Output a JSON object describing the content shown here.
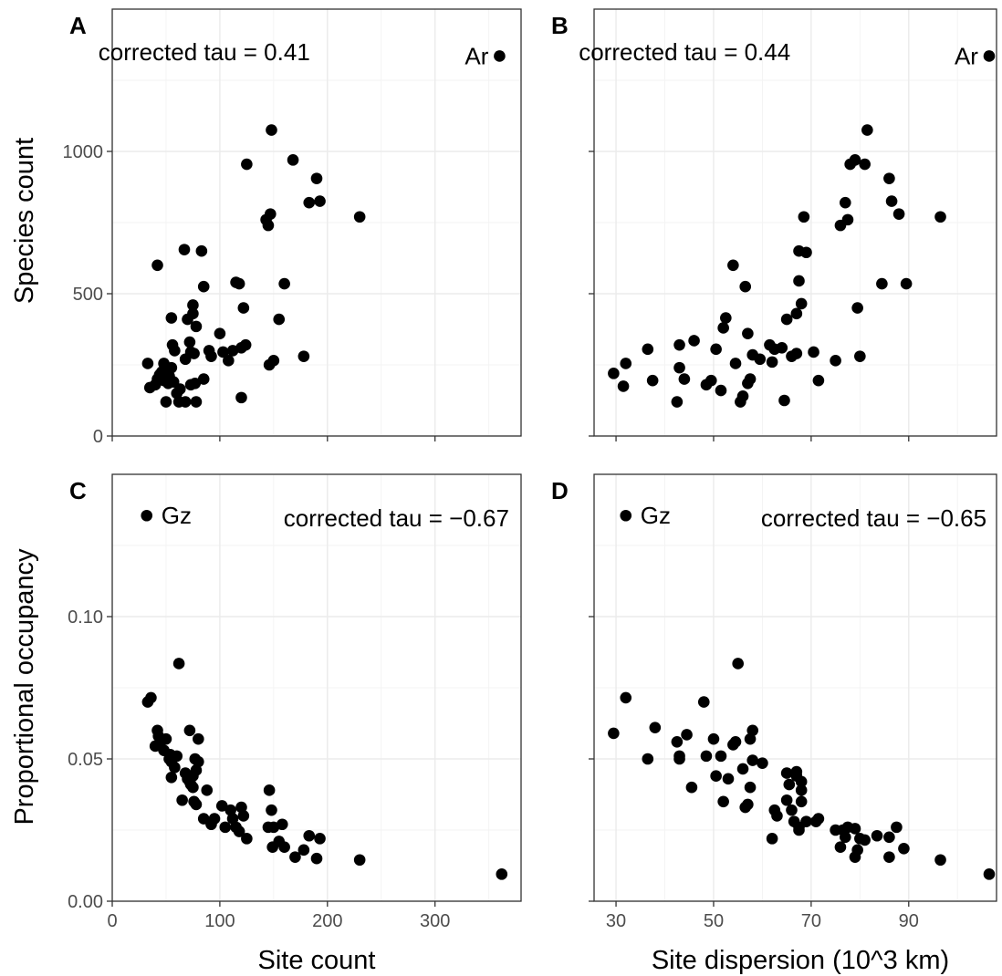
{
  "chart_data": [
    {
      "id": "A",
      "type": "scatter",
      "panel_label": "A",
      "annotation": "corrected tau = 0.41",
      "xlabel": "",
      "ylabel": "Species count",
      "xlim": [
        0,
        380
      ],
      "ylim": [
        0,
        1500
      ],
      "xticks": [
        0,
        100,
        200,
        300
      ],
      "xtick_labels": [
        "",
        "",
        "",
        ""
      ],
      "yticks": [
        0,
        500,
        1000
      ],
      "ytick_labels": [
        "0",
        "500",
        "1000"
      ],
      "grid": true,
      "highlight": {
        "label": "Ar",
        "x": 360,
        "y": 1335
      },
      "points": [
        [
          33,
          255
        ],
        [
          35,
          170
        ],
        [
          40,
          180
        ],
        [
          42,
          600
        ],
        [
          42,
          200
        ],
        [
          44,
          215
        ],
        [
          46,
          225
        ],
        [
          48,
          255
        ],
        [
          48,
          195
        ],
        [
          50,
          120
        ],
        [
          52,
          185
        ],
        [
          53,
          210
        ],
        [
          55,
          240
        ],
        [
          55,
          415
        ],
        [
          56,
          320
        ],
        [
          57,
          190
        ],
        [
          58,
          300
        ],
        [
          60,
          150
        ],
        [
          62,
          120
        ],
        [
          63,
          165
        ],
        [
          67,
          655
        ],
        [
          68,
          120
        ],
        [
          68,
          270
        ],
        [
          70,
          410
        ],
        [
          72,
          330
        ],
        [
          73,
          295
        ],
        [
          73,
          180
        ],
        [
          75,
          460
        ],
        [
          75,
          430
        ],
        [
          76,
          290
        ],
        [
          77,
          185
        ],
        [
          78,
          120
        ],
        [
          78,
          385
        ],
        [
          83,
          650
        ],
        [
          85,
          200
        ],
        [
          85,
          525
        ],
        [
          90,
          300
        ],
        [
          92,
          280
        ],
        [
          100,
          360
        ],
        [
          103,
          295
        ],
        [
          108,
          265
        ],
        [
          112,
          300
        ],
        [
          115,
          540
        ],
        [
          118,
          535
        ],
        [
          120,
          310
        ],
        [
          122,
          450
        ],
        [
          124,
          320
        ],
        [
          120,
          135
        ],
        [
          125,
          955
        ],
        [
          143,
          760
        ],
        [
          145,
          740
        ],
        [
          146,
          250
        ],
        [
          147,
          780
        ],
        [
          148,
          1075
        ],
        [
          150,
          265
        ],
        [
          155,
          410
        ],
        [
          160,
          535
        ],
        [
          168,
          970
        ],
        [
          178,
          280
        ],
        [
          183,
          820
        ],
        [
          190,
          905
        ],
        [
          193,
          825
        ],
        [
          230,
          770
        ]
      ]
    },
    {
      "id": "B",
      "type": "scatter",
      "panel_label": "B",
      "annotation": "corrected tau = 0.44",
      "xlabel": "",
      "ylabel": "",
      "xlim": [
        25.5,
        108
      ],
      "ylim": [
        0,
        1500
      ],
      "xticks": [
        30,
        50,
        70,
        90
      ],
      "xtick_labels": [
        "",
        "",
        "",
        ""
      ],
      "yticks": [
        0,
        500,
        1000
      ],
      "ytick_labels": [
        "",
        "",
        ""
      ],
      "grid": true,
      "highlight": {
        "label": "Ar",
        "x": 106.5,
        "y": 1335
      },
      "points": [
        [
          29.5,
          220
        ],
        [
          31.5,
          175
        ],
        [
          32,
          255
        ],
        [
          36.5,
          305
        ],
        [
          37.5,
          195
        ],
        [
          42.5,
          120
        ],
        [
          43,
          320
        ],
        [
          43,
          240
        ],
        [
          44,
          200
        ],
        [
          46,
          335
        ],
        [
          48.5,
          180
        ],
        [
          49.5,
          195
        ],
        [
          50.5,
          305
        ],
        [
          51.5,
          160
        ],
        [
          52,
          380
        ],
        [
          52.5,
          415
        ],
        [
          54,
          600
        ],
        [
          54.5,
          255
        ],
        [
          55.5,
          120
        ],
        [
          56,
          140
        ],
        [
          56.5,
          525
        ],
        [
          57,
          185
        ],
        [
          57,
          360
        ],
        [
          57.5,
          200
        ],
        [
          58,
          285
        ],
        [
          59.5,
          270
        ],
        [
          61.5,
          320
        ],
        [
          62,
          260
        ],
        [
          62.5,
          305
        ],
        [
          64,
          310
        ],
        [
          64.5,
          125
        ],
        [
          65,
          410
        ],
        [
          66,
          280
        ],
        [
          67,
          290
        ],
        [
          67,
          430
        ],
        [
          67.5,
          650
        ],
        [
          67.5,
          545
        ],
        [
          68,
          465
        ],
        [
          68.5,
          770
        ],
        [
          69,
          645
        ],
        [
          70.5,
          295
        ],
        [
          71.5,
          195
        ],
        [
          75,
          265
        ],
        [
          76,
          740
        ],
        [
          77,
          820
        ],
        [
          77.5,
          760
        ],
        [
          78,
          955
        ],
        [
          79,
          970
        ],
        [
          79.5,
          450
        ],
        [
          80,
          280
        ],
        [
          81,
          955
        ],
        [
          81.5,
          1075
        ],
        [
          84.5,
          535
        ],
        [
          86,
          905
        ],
        [
          86.5,
          825
        ],
        [
          88,
          780
        ],
        [
          89.5,
          535
        ],
        [
          96.5,
          770
        ]
      ]
    },
    {
      "id": "C",
      "type": "scatter",
      "panel_label": "C",
      "annotation": "corrected tau = −0.67",
      "xlabel": "Site count",
      "ylabel": "Proportional occupancy",
      "xlim": [
        0,
        380
      ],
      "ylim": [
        0,
        0.15
      ],
      "xticks": [
        0,
        100,
        200,
        300
      ],
      "xtick_labels": [
        "0",
        "100",
        "200",
        "300"
      ],
      "yticks": [
        0,
        0.05,
        0.1
      ],
      "ytick_labels": [
        "0.00",
        "0.05",
        "0.10"
      ],
      "grid": true,
      "highlight": {
        "label": "Gz",
        "x": 32,
        "y": 0.1355
      },
      "points": [
        [
          33,
          0.07
        ],
        [
          36,
          0.0715
        ],
        [
          40,
          0.0545
        ],
        [
          42,
          0.06
        ],
        [
          43,
          0.058
        ],
        [
          45,
          0.056
        ],
        [
          48,
          0.053
        ],
        [
          50,
          0.057
        ],
        [
          53,
          0.05
        ],
        [
          54,
          0.0515
        ],
        [
          55,
          0.049
        ],
        [
          55,
          0.0435
        ],
        [
          58,
          0.047
        ],
        [
          60,
          0.051
        ],
        [
          62,
          0.0835
        ],
        [
          65,
          0.0355
        ],
        [
          68,
          0.045
        ],
        [
          70,
          0.043
        ],
        [
          72,
          0.06
        ],
        [
          72,
          0.042
        ],
        [
          73,
          0.041
        ],
        [
          75,
          0.044
        ],
        [
          75,
          0.04
        ],
        [
          76,
          0.035
        ],
        [
          77,
          0.05
        ],
        [
          78,
          0.046
        ],
        [
          78,
          0.034
        ],
        [
          80,
          0.057
        ],
        [
          80,
          0.049
        ],
        [
          85,
          0.029
        ],
        [
          88,
          0.039
        ],
        [
          92,
          0.027
        ],
        [
          95,
          0.029
        ],
        [
          102,
          0.0335
        ],
        [
          105,
          0.026
        ],
        [
          110,
          0.032
        ],
        [
          112,
          0.029
        ],
        [
          115,
          0.026
        ],
        [
          118,
          0.0245
        ],
        [
          120,
          0.033
        ],
        [
          122,
          0.03
        ],
        [
          125,
          0.022
        ],
        [
          145,
          0.026
        ],
        [
          146,
          0.039
        ],
        [
          148,
          0.032
        ],
        [
          149,
          0.019
        ],
        [
          150,
          0.026
        ],
        [
          155,
          0.021
        ],
        [
          158,
          0.027
        ],
        [
          160,
          0.019
        ],
        [
          170,
          0.0155
        ],
        [
          178,
          0.018
        ],
        [
          183,
          0.023
        ],
        [
          190,
          0.015
        ],
        [
          193,
          0.022
        ],
        [
          230,
          0.0145
        ],
        [
          362,
          0.0095
        ]
      ]
    },
    {
      "id": "D",
      "type": "scatter",
      "panel_label": "D",
      "annotation": "corrected tau = −0.65",
      "xlabel": "Site dispersion (10^3 km)",
      "ylabel": "",
      "xlim": [
        25.5,
        108
      ],
      "ylim": [
        0,
        0.15
      ],
      "xticks": [
        30,
        50,
        70,
        90
      ],
      "xtick_labels": [
        "30",
        "50",
        "70",
        "90"
      ],
      "yticks": [
        0,
        0.05,
        0.1
      ],
      "ytick_labels": [
        "",
        "",
        ""
      ],
      "grid": true,
      "highlight": {
        "label": "Gz",
        "x": 32,
        "y": 0.1355
      },
      "points": [
        [
          29.5,
          0.059
        ],
        [
          32,
          0.0715
        ],
        [
          36.5,
          0.05
        ],
        [
          38,
          0.061
        ],
        [
          42.5,
          0.056
        ],
        [
          43,
          0.051
        ],
        [
          43,
          0.05
        ],
        [
          44.5,
          0.0585
        ],
        [
          45.5,
          0.04
        ],
        [
          48,
          0.07
        ],
        [
          48.5,
          0.051
        ],
        [
          50,
          0.057
        ],
        [
          50.5,
          0.044
        ],
        [
          51.5,
          0.051
        ],
        [
          52,
          0.035
        ],
        [
          53,
          0.043
        ],
        [
          54,
          0.055
        ],
        [
          54.5,
          0.056
        ],
        [
          55,
          0.0835
        ],
        [
          56,
          0.0465
        ],
        [
          56.5,
          0.033
        ],
        [
          57,
          0.034
        ],
        [
          57.5,
          0.04
        ],
        [
          57.5,
          0.057
        ],
        [
          58,
          0.06
        ],
        [
          58,
          0.0495
        ],
        [
          60,
          0.0485
        ],
        [
          62,
          0.022
        ],
        [
          62.5,
          0.032
        ],
        [
          63,
          0.03
        ],
        [
          65,
          0.0355
        ],
        [
          65,
          0.045
        ],
        [
          65.5,
          0.041
        ],
        [
          66,
          0.032
        ],
        [
          66.5,
          0.028
        ],
        [
          67,
          0.044
        ],
        [
          67,
          0.0455
        ],
        [
          67.5,
          0.025
        ],
        [
          67.5,
          0.026
        ],
        [
          68,
          0.042
        ],
        [
          68,
          0.039
        ],
        [
          68,
          0.035
        ],
        [
          69,
          0.028
        ],
        [
          71,
          0.028
        ],
        [
          71.5,
          0.029
        ],
        [
          75,
          0.025
        ],
        [
          76,
          0.019
        ],
        [
          76.5,
          0.025
        ],
        [
          77,
          0.0225
        ],
        [
          77.5,
          0.026
        ],
        [
          79,
          0.0155
        ],
        [
          79,
          0.0255
        ],
        [
          79.5,
          0.018
        ],
        [
          80,
          0.022
        ],
        [
          81,
          0.0215
        ],
        [
          83.5,
          0.023
        ],
        [
          86,
          0.0225
        ],
        [
          86,
          0.0155
        ],
        [
          87.5,
          0.026
        ],
        [
          89,
          0.0185
        ],
        [
          96.5,
          0.0145
        ],
        [
          106.5,
          0.0095
        ]
      ]
    }
  ],
  "labels": {
    "ylabel_top": "Species count",
    "ylabel_bottom": "Proportional occupancy",
    "xlabel_left": "Site count",
    "xlabel_right": "Site dispersion (10^3 km)"
  }
}
